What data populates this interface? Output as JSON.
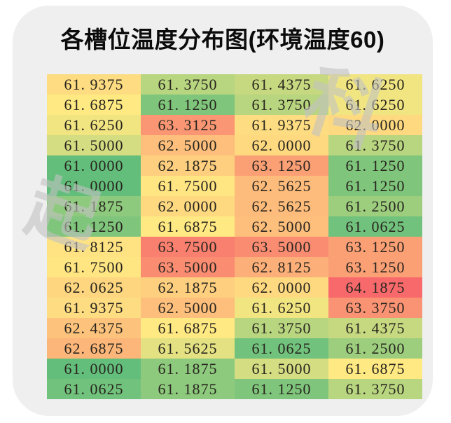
{
  "chart_data": {
    "type": "heatmap",
    "title": "各槽位温度分布图(环境温度60)",
    "rows": 16,
    "cols": 4,
    "values": [
      [
        61.9375,
        61.375,
        61.4375,
        61.625
      ],
      [
        61.6875,
        61.125,
        61.375,
        61.625
      ],
      [
        61.625,
        63.3125,
        61.9375,
        62.0
      ],
      [
        61.5,
        62.5,
        62.0,
        61.375
      ],
      [
        61.0,
        62.1875,
        63.125,
        61.125
      ],
      [
        61.0,
        61.75,
        62.5625,
        61.125
      ],
      [
        61.1875,
        62.0,
        62.5625,
        61.25
      ],
      [
        61.125,
        61.6875,
        62.5,
        61.0625
      ],
      [
        61.8125,
        63.75,
        63.5,
        63.125
      ],
      [
        61.75,
        63.5,
        62.8125,
        63.125
      ],
      [
        62.0625,
        62.1875,
        62.0,
        64.1875
      ],
      [
        61.9375,
        62.5,
        61.625,
        63.375
      ],
      [
        62.4375,
        61.6875,
        61.375,
        61.4375
      ],
      [
        62.6875,
        61.5625,
        61.0625,
        61.25
      ],
      [
        61.0,
        61.1875,
        61.5,
        61.6875
      ],
      [
        61.0625,
        61.1875,
        61.125,
        61.375
      ]
    ],
    "value_decimals": 4,
    "decimal_separator_display": ". ",
    "colorscale": {
      "min_value": 61.0,
      "mid_value": 61.6875,
      "max_value": 64.1875,
      "min_color": "#63be7b",
      "mid_color": "#ffe983",
      "max_color": "#f8696b"
    },
    "legend": "none",
    "grid": "off",
    "axes": "none"
  },
  "watermarks": [
    {
      "text": "科"
    },
    {
      "text": "起"
    }
  ],
  "colors": {
    "page_bg": "#ffffff",
    "card_bg": "#efeff0",
    "title_color": "#0c0c0c",
    "cell_text_color": "#28251f",
    "watermark_color": "#c1c1c1"
  }
}
